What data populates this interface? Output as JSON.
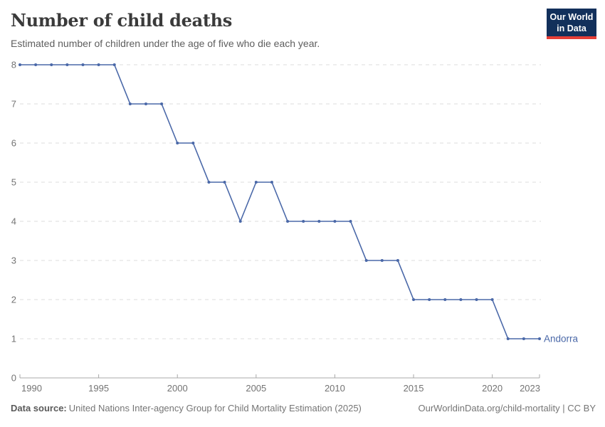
{
  "logo": {
    "line1": "Our World",
    "line2": "in Data"
  },
  "theme": {
    "line_color": "#4a68a8",
    "grid_color": "#dcdcdc",
    "axis_color": "#a8a8a8",
    "tick_label_color": "#737373",
    "title_color": "#3a3a3a",
    "subtitle_color": "#5e5e5e",
    "footer_color": "#757575",
    "logo_bg": "#12305b",
    "logo_accent": "#e63e36"
  },
  "chart_data": {
    "type": "line",
    "title": "Number of child deaths",
    "subtitle": "Estimated number of children under the age of five who die each year.",
    "xlabel": "",
    "ylabel": "",
    "x": [
      1990,
      1991,
      1992,
      1993,
      1994,
      1995,
      1996,
      1997,
      1998,
      1999,
      2000,
      2001,
      2002,
      2003,
      2004,
      2005,
      2006,
      2007,
      2008,
      2009,
      2010,
      2011,
      2012,
      2013,
      2014,
      2015,
      2016,
      2017,
      2018,
      2019,
      2020,
      2021,
      2022,
      2023
    ],
    "series": [
      {
        "name": "Andorra",
        "values": [
          8,
          8,
          8,
          8,
          8,
          8,
          8,
          7,
          7,
          7,
          6,
          6,
          5,
          5,
          4,
          5,
          5,
          4,
          4,
          4,
          4,
          4,
          3,
          3,
          3,
          2,
          2,
          2,
          2,
          2,
          2,
          1,
          1,
          1
        ]
      }
    ],
    "xlim": [
      1990,
      2023
    ],
    "ylim": [
      0,
      8
    ],
    "xticks": [
      1990,
      1995,
      2000,
      2005,
      2010,
      2015,
      2020,
      2023
    ],
    "yticks": [
      0,
      1,
      2,
      3,
      4,
      5,
      6,
      7,
      8
    ],
    "grid": "horizontal dashed",
    "legend_position": "end-of-line label",
    "markers": true
  },
  "footer": {
    "source_label": "Data source:",
    "source_text": "United Nations Inter-agency Group for Child Mortality Estimation (2025)",
    "link_text": "OurWorldinData.org/child-mortality | CC BY"
  }
}
